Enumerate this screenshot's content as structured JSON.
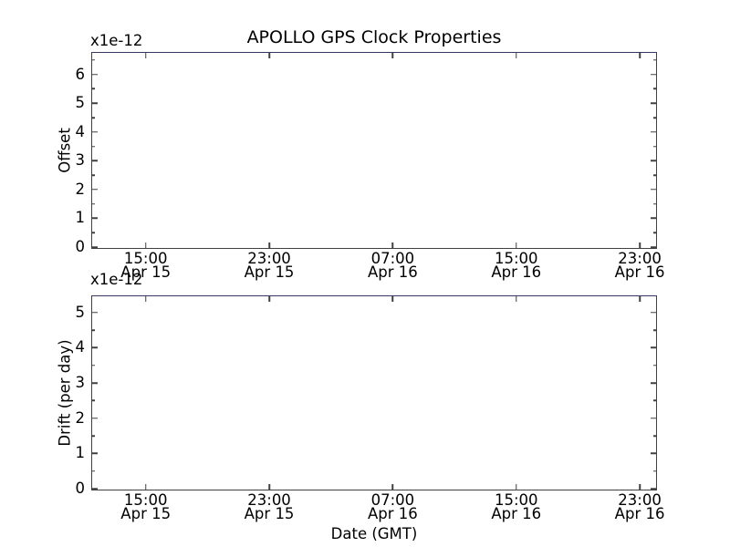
{
  "figure": {
    "background": "#ffffff",
    "text_color": "#000000",
    "spine_color": "#404040",
    "top_spine_color": "#373760"
  },
  "chart_data": [
    {
      "type": "line",
      "subplot": "top",
      "title": "APOLLO GPS Clock Properties",
      "ylabel": "Offset",
      "xlabel": "",
      "y_offset_text": "x1e-12",
      "ylim": [
        0,
        6.75
      ],
      "yticks": [
        0,
        1,
        2,
        3,
        4,
        5,
        6
      ],
      "y_minor_step": 0.5,
      "x_axis": {
        "unit": "hours since Apr 15 00:00 GMT",
        "min": 11.53,
        "max": 48.0,
        "ticks": [
          {
            "value": 15,
            "time": "15:00",
            "date": "Apr 15"
          },
          {
            "value": 23,
            "time": "23:00",
            "date": "Apr 15"
          },
          {
            "value": 31,
            "time": "07:00",
            "date": "Apr 16"
          },
          {
            "value": 39,
            "time": "15:00",
            "date": "Apr 16"
          },
          {
            "value": 47,
            "time": "23:00",
            "date": "Apr 16"
          }
        ]
      },
      "series": [],
      "grid": false,
      "legend": null
    },
    {
      "type": "line",
      "subplot": "bottom",
      "title": "",
      "ylabel": "Drift (per day)",
      "xlabel": "Date (GMT)",
      "y_offset_text": "x1e-12",
      "ylim": [
        0,
        5.46
      ],
      "yticks": [
        0,
        1,
        2,
        3,
        4,
        5
      ],
      "y_minor_step": 0.5,
      "x_axis": {
        "unit": "hours since Apr 15 00:00 GMT",
        "min": 11.53,
        "max": 48.0,
        "ticks": [
          {
            "value": 15,
            "time": "15:00",
            "date": "Apr 15"
          },
          {
            "value": 23,
            "time": "23:00",
            "date": "Apr 15"
          },
          {
            "value": 31,
            "time": "07:00",
            "date": "Apr 16"
          },
          {
            "value": 39,
            "time": "15:00",
            "date": "Apr 16"
          },
          {
            "value": 47,
            "time": "23:00",
            "date": "Apr 16"
          }
        ]
      },
      "series": [],
      "grid": false,
      "legend": null
    }
  ]
}
